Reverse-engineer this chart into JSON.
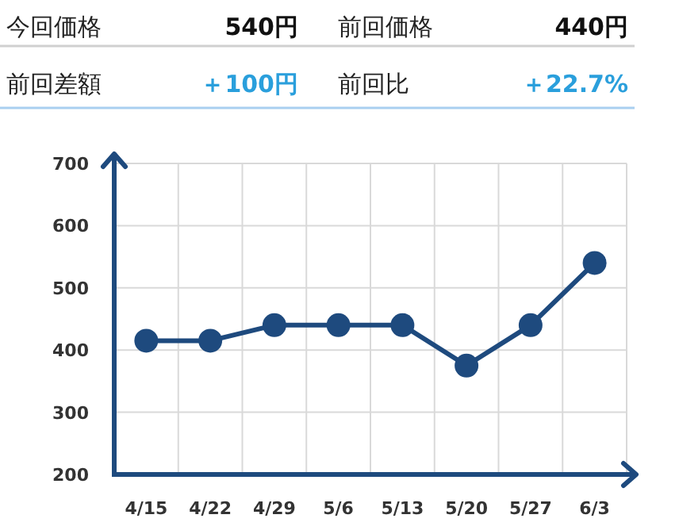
{
  "chart_data": [
    {
      "type": "other",
      "annotations": [
        "今回価格",
        "540円",
        "前回価格",
        "440円",
        "前回差額",
        "＋100円",
        "前回比",
        "＋22.7%"
      ]
    },
    {
      "type": "line",
      "categories": [
        "4/15",
        "4/22",
        "4/29",
        "5/6",
        "5/13",
        "5/20",
        "5/27",
        "6/3"
      ],
      "series": [
        {
          "color": "#1e4a7e",
          "values": [
            415,
            415,
            440,
            440,
            440,
            375,
            440,
            540
          ]
        }
      ],
      "ylim": [
        200,
        700
      ],
      "yticks": [
        200,
        300,
        400,
        500,
        600,
        700
      ],
      "grid": true,
      "marker": "circle",
      "line_style": "solid"
    }
  ]
}
